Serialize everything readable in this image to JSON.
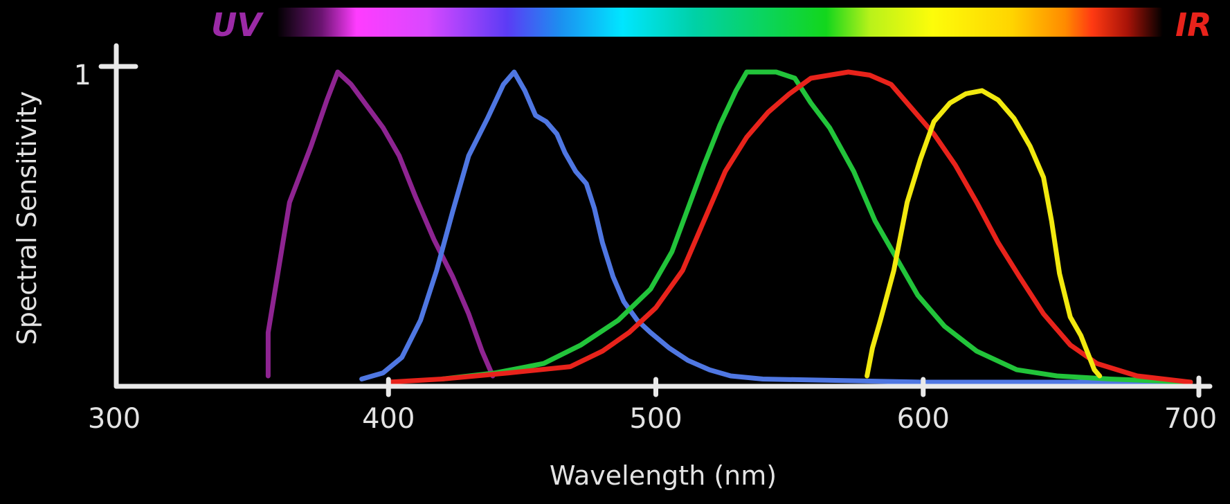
{
  "chart_data": {
    "type": "line",
    "title": "",
    "xlabel": "Wavelength (nm)",
    "ylabel": "Spectral Sensitivity",
    "xlim": [
      300,
      700
    ],
    "ylim": [
      0,
      1
    ],
    "x_ticks": [
      "300",
      "400",
      "500",
      "600",
      "700"
    ],
    "y_ticks": [
      "1"
    ],
    "grid": false,
    "legend": false,
    "spectrum_bar": {
      "left_label": "UV",
      "right_label": "IR",
      "left_color": "#9b2aa6",
      "right_color": "#e8231b"
    },
    "series": [
      {
        "color": "#8e2491",
        "points": [
          [
            355,
            0.02
          ],
          [
            355,
            0.16
          ],
          [
            363,
            0.58
          ],
          [
            371,
            0.76
          ],
          [
            377,
            0.91
          ],
          [
            381,
            1.0
          ],
          [
            386,
            0.96
          ],
          [
            392,
            0.89
          ],
          [
            398,
            0.82
          ],
          [
            404,
            0.73
          ],
          [
            410,
            0.6
          ],
          [
            417,
            0.46
          ],
          [
            424,
            0.34
          ],
          [
            430,
            0.22
          ],
          [
            435,
            0.1
          ],
          [
            439,
            0.02
          ]
        ]
      },
      {
        "color": "#4f77e2",
        "points": [
          [
            390,
            0.01
          ],
          [
            398,
            0.03
          ],
          [
            405,
            0.08
          ],
          [
            412,
            0.2
          ],
          [
            418,
            0.36
          ],
          [
            424,
            0.55
          ],
          [
            430,
            0.73
          ],
          [
            437,
            0.85
          ],
          [
            443,
            0.96
          ],
          [
            447,
            1.0
          ],
          [
            451,
            0.94
          ],
          [
            455,
            0.86
          ],
          [
            459,
            0.84
          ],
          [
            463,
            0.8
          ],
          [
            466,
            0.74
          ],
          [
            470,
            0.68
          ],
          [
            474,
            0.64
          ],
          [
            477,
            0.56
          ],
          [
            480,
            0.45
          ],
          [
            484,
            0.34
          ],
          [
            488,
            0.26
          ],
          [
            493,
            0.2
          ],
          [
            498,
            0.16
          ],
          [
            505,
            0.11
          ],
          [
            512,
            0.07
          ],
          [
            520,
            0.04
          ],
          [
            528,
            0.02
          ],
          [
            540,
            0.01
          ],
          [
            600,
            0.0
          ],
          [
            700,
            0.0
          ]
        ]
      },
      {
        "color": "#22c43a",
        "points": [
          [
            420,
            0.01
          ],
          [
            440,
            0.03
          ],
          [
            458,
            0.06
          ],
          [
            472,
            0.12
          ],
          [
            486,
            0.2
          ],
          [
            498,
            0.3
          ],
          [
            506,
            0.42
          ],
          [
            512,
            0.56
          ],
          [
            518,
            0.7
          ],
          [
            524,
            0.83
          ],
          [
            530,
            0.94
          ],
          [
            534,
            1.0
          ],
          [
            545,
            1.0
          ],
          [
            552,
            0.98
          ],
          [
            558,
            0.9
          ],
          [
            565,
            0.82
          ],
          [
            574,
            0.68
          ],
          [
            582,
            0.52
          ],
          [
            590,
            0.4
          ],
          [
            598,
            0.28
          ],
          [
            608,
            0.18
          ],
          [
            620,
            0.1
          ],
          [
            635,
            0.04
          ],
          [
            650,
            0.02
          ],
          [
            670,
            0.01
          ],
          [
            700,
            0.0
          ]
        ]
      },
      {
        "color": "#e8231b",
        "points": [
          [
            400,
            0.0
          ],
          [
            420,
            0.01
          ],
          [
            445,
            0.03
          ],
          [
            468,
            0.05
          ],
          [
            480,
            0.1
          ],
          [
            490,
            0.16
          ],
          [
            500,
            0.24
          ],
          [
            510,
            0.36
          ],
          [
            518,
            0.52
          ],
          [
            526,
            0.68
          ],
          [
            534,
            0.79
          ],
          [
            542,
            0.87
          ],
          [
            550,
            0.93
          ],
          [
            558,
            0.98
          ],
          [
            565,
            0.99
          ],
          [
            572,
            1.0
          ],
          [
            580,
            0.99
          ],
          [
            588,
            0.96
          ],
          [
            596,
            0.88
          ],
          [
            604,
            0.8
          ],
          [
            612,
            0.7
          ],
          [
            620,
            0.58
          ],
          [
            628,
            0.45
          ],
          [
            636,
            0.34
          ],
          [
            645,
            0.22
          ],
          [
            655,
            0.12
          ],
          [
            665,
            0.06
          ],
          [
            680,
            0.02
          ],
          [
            700,
            0.0
          ]
        ]
      },
      {
        "color": "#f2e90f",
        "points": [
          [
            579,
            0.02
          ],
          [
            581,
            0.11
          ],
          [
            584,
            0.2
          ],
          [
            589,
            0.36
          ],
          [
            594,
            0.58
          ],
          [
            599,
            0.72
          ],
          [
            604,
            0.84
          ],
          [
            610,
            0.9
          ],
          [
            616,
            0.93
          ],
          [
            622,
            0.94
          ],
          [
            628,
            0.91
          ],
          [
            634,
            0.85
          ],
          [
            640,
            0.76
          ],
          [
            645,
            0.66
          ],
          [
            648,
            0.52
          ],
          [
            651,
            0.35
          ],
          [
            655,
            0.21
          ],
          [
            659,
            0.15
          ],
          [
            664,
            0.04
          ],
          [
            666,
            0.02
          ]
        ]
      }
    ]
  }
}
